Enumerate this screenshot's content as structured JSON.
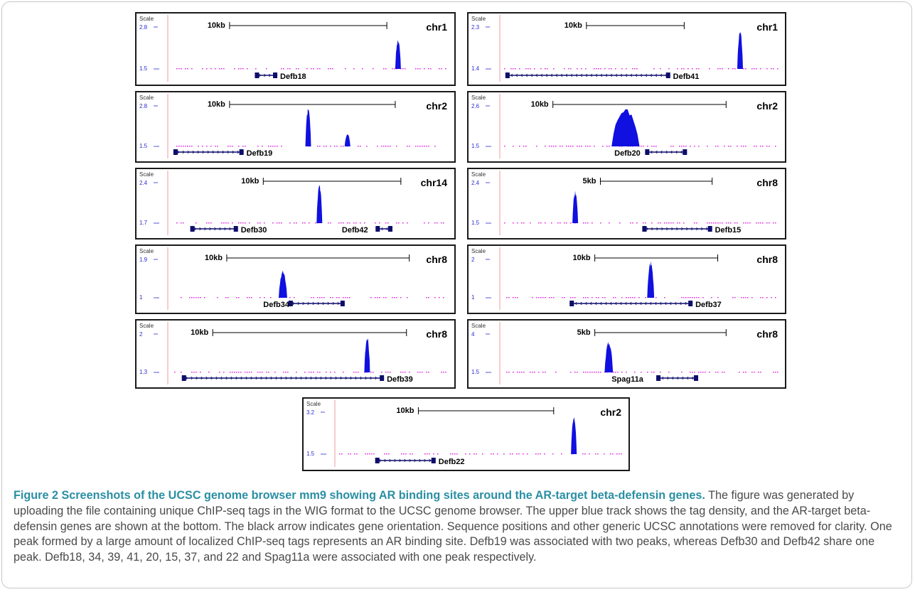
{
  "figure": {
    "scale_label": "Scale",
    "colors": {
      "signal": "#1010e0",
      "gene": "#0d0d6b",
      "baseline": "#e020e0",
      "axis": "#2a2ad0",
      "caption_title": "#2a8fa3",
      "caption_text": "#4a4a4a"
    },
    "panels": [
      {
        "id": "defb18",
        "chrom": "chr1",
        "scale": "10kb",
        "y_top": "2.8",
        "y_bottom": "1.5",
        "gene": "Defb18",
        "peaks": [
          0.82
        ],
        "peak_heights": [
          0.75
        ],
        "peak_widths": [
          0.02
        ],
        "scale_bar": [
          0.22,
          0.78
        ],
        "gene_span": [
          0.31,
          0.39
        ],
        "gene_label_pos": 0.4,
        "strand": "+"
      },
      {
        "id": "defb41",
        "chrom": "chr1",
        "scale": "10kb",
        "y_top": "2.3",
        "y_bottom": "1.4",
        "gene": "Defb41",
        "peaks": [
          0.86
        ],
        "peak_heights": [
          1.0
        ],
        "peak_widths": [
          0.02
        ],
        "scale_bar": [
          0.31,
          0.66
        ],
        "gene_span": [
          0.02,
          0.61
        ],
        "gene_label_pos": 0.62,
        "strand": "-"
      },
      {
        "id": "defb19",
        "chrom": "chr2",
        "scale": "10kb",
        "y_top": "2.8",
        "y_bottom": "1.5",
        "gene": "Defb19",
        "peaks": [
          0.5,
          0.64
        ],
        "peak_heights": [
          1.0,
          0.33
        ],
        "peak_widths": [
          0.02,
          0.015
        ],
        "scale_bar": [
          0.22,
          0.81
        ],
        "gene_span": [
          0.02,
          0.27
        ],
        "gene_label_pos": 0.28,
        "strand": "+"
      },
      {
        "id": "defb20",
        "chrom": "chr2",
        "scale": "10kb",
        "y_top": "2.6",
        "y_bottom": "1.5",
        "gene": "Defb20",
        "peaks": [
          0.45
        ],
        "peak_heights": [
          1.0
        ],
        "peak_widths": [
          0.1
        ],
        "scale_bar": [
          0.19,
          0.81
        ],
        "gene_span": [
          0.52,
          0.67
        ],
        "gene_label_pos": 0.41,
        "strand": "-"
      },
      {
        "id": "defb30_42",
        "chrom": "chr14",
        "scale": "10kb",
        "y_top": "2.4",
        "y_bottom": "1.7",
        "gene": "Defb30",
        "gene2": "Defb42",
        "peaks": [
          0.54
        ],
        "peak_heights": [
          1.0
        ],
        "peak_widths": [
          0.02
        ],
        "scale_bar": [
          0.34,
          0.83
        ],
        "gene_span": [
          0.08,
          0.25
        ],
        "gene_label_pos": 0.26,
        "strand": "+",
        "gene2_span": [
          0.74,
          0.8
        ],
        "gene2_label_pos": 0.62
      },
      {
        "id": "defb15",
        "chrom": "chr8",
        "scale": "5kb",
        "y_top": "2.4",
        "y_bottom": "1.5",
        "gene": "Defb15",
        "peaks": [
          0.27
        ],
        "peak_heights": [
          0.85
        ],
        "peak_widths": [
          0.02
        ],
        "scale_bar": [
          0.36,
          0.76
        ],
        "gene_span": [
          0.51,
          0.76
        ],
        "gene_label_pos": 0.77,
        "strand": "+"
      },
      {
        "id": "defb34",
        "chrom": "chr8",
        "scale": "10kb",
        "y_top": "1.9",
        "y_bottom": "1",
        "gene": "Defb34",
        "peaks": [
          0.41
        ],
        "peak_heights": [
          0.75
        ],
        "peak_widths": [
          0.03
        ],
        "scale_bar": [
          0.21,
          0.86
        ],
        "gene_span": [
          0.43,
          0.63
        ],
        "gene_label_pos": 0.34,
        "strand": "+"
      },
      {
        "id": "defb37",
        "chrom": "chr8",
        "scale": "10kb",
        "y_top": "2",
        "y_bottom": "1",
        "gene": "Defb37",
        "peaks": [
          0.54
        ],
        "peak_heights": [
          1.0
        ],
        "peak_widths": [
          0.025
        ],
        "scale_bar": [
          0.34,
          0.78
        ],
        "gene_span": [
          0.25,
          0.69
        ],
        "gene_label_pos": 0.7,
        "strand": "-"
      },
      {
        "id": "defb39",
        "chrom": "chr8",
        "scale": "10kb",
        "y_top": "2",
        "y_bottom": "1.3",
        "gene": "Defb39",
        "peaks": [
          0.71
        ],
        "peak_heights": [
          1.0
        ],
        "peak_widths": [
          0.02
        ],
        "scale_bar": [
          0.16,
          0.85
        ],
        "gene_span": [
          0.05,
          0.77
        ],
        "gene_label_pos": 0.78,
        "strand": "+"
      },
      {
        "id": "spag11a",
        "chrom": "chr8",
        "scale": "5kb",
        "y_top": "4",
        "y_bottom": "1.5",
        "gene": "Spag11a",
        "peaks": [
          0.39
        ],
        "peak_heights": [
          0.85
        ],
        "peak_widths": [
          0.03
        ],
        "scale_bar": [
          0.34,
          0.81
        ],
        "gene_span": [
          0.56,
          0.71
        ],
        "gene_label_pos": 0.4,
        "strand": "-"
      },
      {
        "id": "defb22",
        "chrom": "chr2",
        "scale": "10kb",
        "y_top": "3.2",
        "y_bottom": "1.5",
        "gene": "Defb22",
        "peaks": [
          0.83
        ],
        "peak_heights": [
          1.0
        ],
        "peak_widths": [
          0.02
        ],
        "scale_bar": [
          0.29,
          0.76
        ],
        "gene_span": [
          0.14,
          0.35
        ],
        "gene_label_pos": 0.36,
        "strand": "+"
      }
    ]
  },
  "caption": {
    "title": "Figure 2 Screenshots of the UCSC genome browser mm9 showing AR binding sites around the AR-target beta-defensin genes.",
    "body": " The figure was generated by uploading the file containing unique ChIP-seq tags in the WIG format to the UCSC genome browser. The upper blue track shows the tag density, and the AR-target beta-defensin genes are shown at the bottom. The black arrow indicates gene orientation. Sequence positions and other generic UCSC annotations were removed for clarity. One peak formed by a large amount of localized ChIP-seq tags represents an AR binding site. Defb19 was associated with two peaks, whereas Defb30 and Defb42 share one peak. Defb18, 34, 39, 41, 20, 15, 37, and 22 and Spag11a were associated with one peak respectively."
  }
}
